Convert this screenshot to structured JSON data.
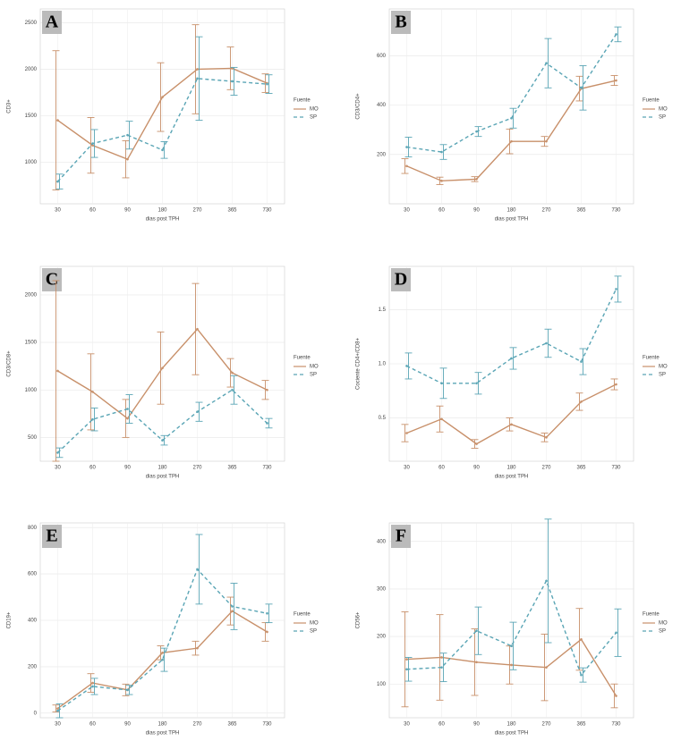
{
  "chart_data": [
    {
      "type": "line",
      "panel": "A",
      "y_label": "CD3+",
      "x_label": "dias post TPH",
      "legend_title": "Fuente",
      "categories": [
        "30",
        "60",
        "90",
        "180",
        "270",
        "365",
        "730"
      ],
      "ylim": [
        550,
        2650
      ],
      "yticks": [
        1000,
        1500,
        2000,
        2500
      ],
      "grid": true,
      "series": [
        {
          "name": "MO",
          "color": "#c8906a",
          "line_style": "solid",
          "values": [
            1450,
            1180,
            1030,
            1700,
            2000,
            2010,
            1850
          ],
          "errors": [
            750,
            300,
            200,
            370,
            480,
            230,
            100
          ]
        },
        {
          "name": "SP",
          "color": "#5aa5b5",
          "line_style": "dashed",
          "values": [
            790,
            1200,
            1290,
            1130,
            1900,
            1870,
            1840
          ],
          "errors": [
            80,
            150,
            150,
            90,
            450,
            150,
            100
          ]
        }
      ]
    },
    {
      "type": "line",
      "panel": "B",
      "y_label": "CD3/CD4+",
      "x_label": "dias post TPH",
      "legend_title": "Fuente",
      "categories": [
        "30",
        "60",
        "90",
        "180",
        "270",
        "365",
        "730"
      ],
      "ylim": [
        0,
        790
      ],
      "yticks": [
        200,
        400,
        600
      ],
      "grid": true,
      "series": [
        {
          "name": "MO",
          "color": "#c8906a",
          "line_style": "solid",
          "values": [
            153,
            93,
            100,
            253,
            253,
            467,
            500
          ],
          "errors": [
            30,
            15,
            10,
            50,
            20,
            50,
            20
          ]
        },
        {
          "name": "SP",
          "color": "#5aa5b5",
          "line_style": "dashed",
          "values": [
            230,
            210,
            293,
            347,
            570,
            470,
            687
          ],
          "errors": [
            40,
            30,
            20,
            40,
            100,
            90,
            30
          ]
        }
      ]
    },
    {
      "type": "line",
      "panel": "C",
      "y_label": "CD3/CD8+",
      "x_label": "dias post TPH",
      "legend_title": "Fuente",
      "categories": [
        "30",
        "60",
        "90",
        "180",
        "270",
        "365",
        "730"
      ],
      "ylim": [
        250,
        2300
      ],
      "yticks": [
        500,
        1000,
        1500,
        2000
      ],
      "grid": true,
      "series": [
        {
          "name": "MO",
          "color": "#c8906a",
          "line_style": "solid",
          "values": [
            1200,
            980,
            700,
            1230,
            1640,
            1180,
            1000
          ],
          "errors": [
            950,
            400,
            200,
            380,
            480,
            150,
            100
          ]
        },
        {
          "name": "SP",
          "color": "#5aa5b5",
          "line_style": "dashed",
          "values": [
            340,
            690,
            800,
            470,
            770,
            1000,
            650
          ],
          "errors": [
            50,
            120,
            150,
            50,
            100,
            150,
            50
          ]
        }
      ]
    },
    {
      "type": "line",
      "panel": "D",
      "y_label": "Cociente CD4+/CD8+",
      "x_label": "dias post TPH",
      "legend_title": "Fuente",
      "categories": [
        "30",
        "60",
        "90",
        "180",
        "270",
        "365",
        "730"
      ],
      "ylim": [
        0.1,
        1.9
      ],
      "yticks": [
        0.5,
        {
          "value": 1,
          "label": "1.0"
        },
        1.5
      ],
      "grid": true,
      "series": [
        {
          "name": "MO",
          "color": "#c8906a",
          "line_style": "solid",
          "values": [
            0.36,
            0.49,
            0.26,
            0.44,
            0.32,
            0.65,
            0.81
          ],
          "errors": [
            0.08,
            0.12,
            0.04,
            0.06,
            0.04,
            0.08,
            0.05
          ]
        },
        {
          "name": "SP",
          "color": "#5aa5b5",
          "line_style": "dashed",
          "values": [
            0.98,
            0.82,
            0.82,
            1.05,
            1.19,
            1.02,
            1.69
          ],
          "errors": [
            0.12,
            0.14,
            0.1,
            0.1,
            0.13,
            0.12,
            0.12
          ]
        }
      ]
    },
    {
      "type": "line",
      "panel": "E",
      "y_label": "CD19+",
      "x_label": "dias post TPH",
      "legend_title": "Fuente",
      "categories": [
        "30",
        "60",
        "90",
        "180",
        "270",
        "365",
        "730"
      ],
      "ylim": [
        -20,
        820
      ],
      "yticks": [
        0,
        200,
        400,
        600,
        800
      ],
      "grid": true,
      "series": [
        {
          "name": "MO",
          "color": "#c8906a",
          "line_style": "solid",
          "values": [
            20,
            130,
            100,
            260,
            280,
            440,
            350
          ],
          "errors": [
            15,
            40,
            25,
            30,
            30,
            60,
            40
          ]
        },
        {
          "name": "SP",
          "color": "#5aa5b5",
          "line_style": "dashed",
          "values": [
            10,
            115,
            100,
            230,
            620,
            460,
            430
          ],
          "errors": [
            30,
            35,
            20,
            50,
            150,
            100,
            40
          ]
        }
      ]
    },
    {
      "type": "line",
      "panel": "F",
      "y_label": "CD56+",
      "x_label": "dias post TPH",
      "legend_title": "Fuente",
      "categories": [
        "30",
        "60",
        "90",
        "180",
        "270",
        "365",
        "730"
      ],
      "ylim": [
        29,
        439
      ],
      "yticks": [
        100,
        200,
        300,
        400
      ],
      "grid": true,
      "series": [
        {
          "name": "MO",
          "color": "#c8906a",
          "line_style": "solid",
          "values": [
            152,
            156,
            146,
            140,
            135,
            194,
            75
          ],
          "errors": [
            100,
            90,
            70,
            40,
            70,
            65,
            25
          ]
        },
        {
          "name": "SP",
          "color": "#5aa5b5",
          "line_style": "dashed",
          "values": [
            131,
            135,
            212,
            180,
            317,
            119,
            208
          ],
          "errors": [
            25,
            30,
            50,
            50,
            130,
            15,
            50
          ]
        }
      ]
    }
  ]
}
